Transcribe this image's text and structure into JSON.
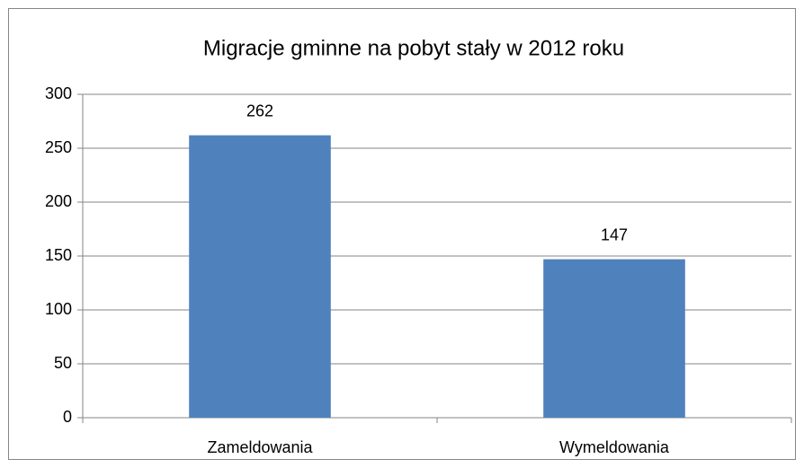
{
  "chart_data": {
    "type": "bar",
    "title": "Migracje gminne na pobyt stały w 2012 roku",
    "categories": [
      "Zameldowania",
      "Wymeldowania"
    ],
    "values": [
      262,
      147
    ],
    "color": "#4f81bd",
    "ylim": [
      0,
      300
    ],
    "yticks": [
      0,
      50,
      100,
      150,
      200,
      250,
      300
    ],
    "grid": true
  }
}
